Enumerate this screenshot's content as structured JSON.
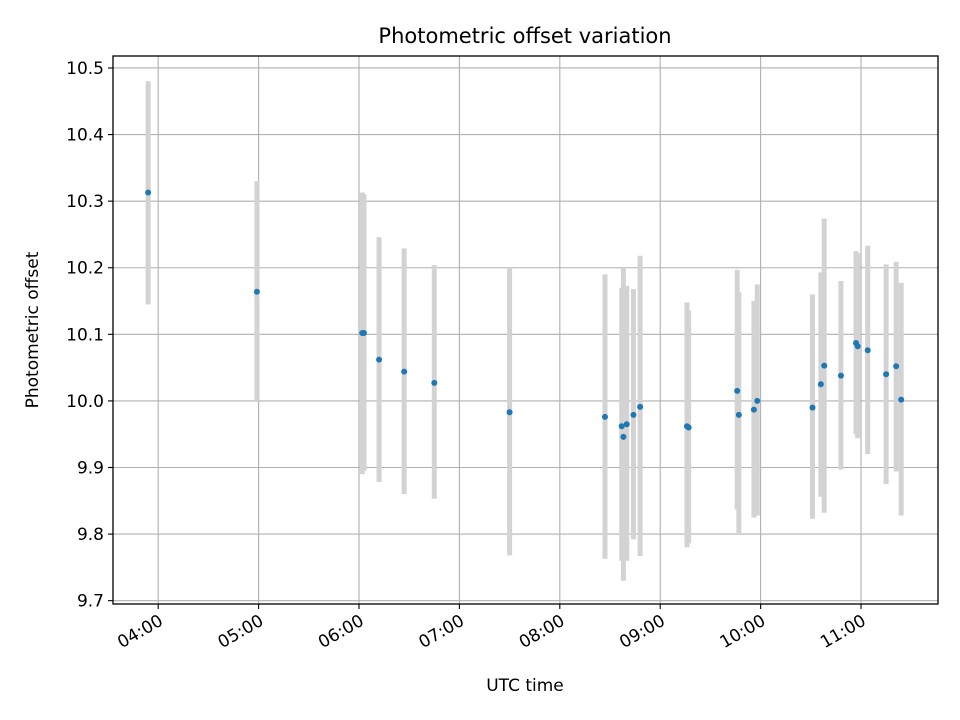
{
  "chart_data": {
    "type": "scatter",
    "title": "Photometric offset variation",
    "xlabel": "UTC time",
    "ylabel": "Photometric offset",
    "grid": true,
    "xlim": [
      "03:33",
      "11:46"
    ],
    "ylim": [
      9.695,
      10.518
    ],
    "x_ticks": [
      "04:00",
      "05:00",
      "06:00",
      "07:00",
      "08:00",
      "09:00",
      "10:00",
      "11:00"
    ],
    "y_ticks": [
      9.7,
      9.8,
      9.9,
      10.0,
      10.1,
      10.2,
      10.3,
      10.4,
      10.5
    ],
    "y_tick_labels": [
      "9.7",
      "9.8",
      "9.9",
      "10.0",
      "10.1",
      "10.2",
      "10.3",
      "10.4",
      "10.5"
    ],
    "errorbar_color": "#d3d3d3",
    "point_color": "#1f77b4",
    "points": [
      {
        "x": "03:54",
        "y": 10.313,
        "ylo": 10.145,
        "yhi": 10.48
      },
      {
        "x": "04:59",
        "y": 10.164,
        "ylo": 10.0,
        "yhi": 10.33
      },
      {
        "x": "06:02",
        "y": 10.102,
        "ylo": 9.89,
        "yhi": 10.313
      },
      {
        "x": "06:03",
        "y": 10.102,
        "ylo": 9.895,
        "yhi": 10.31
      },
      {
        "x": "06:12",
        "y": 10.062,
        "ylo": 9.878,
        "yhi": 10.246
      },
      {
        "x": "06:27",
        "y": 10.044,
        "ylo": 9.86,
        "yhi": 10.229
      },
      {
        "x": "06:45",
        "y": 10.027,
        "ylo": 9.853,
        "yhi": 10.204
      },
      {
        "x": "07:30",
        "y": 9.983,
        "ylo": 9.768,
        "yhi": 10.2
      },
      {
        "x": "08:27",
        "y": 9.976,
        "ylo": 9.763,
        "yhi": 10.19
      },
      {
        "x": "08:37",
        "y": 9.962,
        "ylo": 9.76,
        "yhi": 10.17
      },
      {
        "x": "08:38",
        "y": 9.946,
        "ylo": 9.73,
        "yhi": 10.2
      },
      {
        "x": "08:40",
        "y": 9.965,
        "ylo": 9.76,
        "yhi": 10.173
      },
      {
        "x": "08:44",
        "y": 9.979,
        "ylo": 9.792,
        "yhi": 10.168
      },
      {
        "x": "08:48",
        "y": 9.991,
        "ylo": 9.767,
        "yhi": 10.218
      },
      {
        "x": "09:16",
        "y": 9.962,
        "ylo": 9.78,
        "yhi": 10.148
      },
      {
        "x": "09:17",
        "y": 9.96,
        "ylo": 9.786,
        "yhi": 10.136
      },
      {
        "x": "09:46",
        "y": 10.015,
        "ylo": 9.837,
        "yhi": 10.197
      },
      {
        "x": "09:47",
        "y": 9.979,
        "ylo": 9.8,
        "yhi": 10.163
      },
      {
        "x": "09:56",
        "y": 9.987,
        "ylo": 9.825,
        "yhi": 10.15
      },
      {
        "x": "09:58",
        "y": 10.0,
        "ylo": 9.828,
        "yhi": 10.175
      },
      {
        "x": "10:31",
        "y": 9.99,
        "ylo": 9.823,
        "yhi": 10.16
      },
      {
        "x": "10:36",
        "y": 10.025,
        "ylo": 9.856,
        "yhi": 10.193
      },
      {
        "x": "10:38",
        "y": 10.053,
        "ylo": 9.832,
        "yhi": 10.274
      },
      {
        "x": "10:48",
        "y": 10.038,
        "ylo": 9.897,
        "yhi": 10.18
      },
      {
        "x": "10:57",
        "y": 10.087,
        "ylo": 9.95,
        "yhi": 10.225
      },
      {
        "x": "10:58",
        "y": 10.082,
        "ylo": 9.944,
        "yhi": 10.222
      },
      {
        "x": "11:04",
        "y": 10.076,
        "ylo": 9.92,
        "yhi": 10.233
      },
      {
        "x": "11:15",
        "y": 10.04,
        "ylo": 9.875,
        "yhi": 10.205
      },
      {
        "x": "11:21",
        "y": 10.052,
        "ylo": 9.894,
        "yhi": 10.209
      },
      {
        "x": "11:24",
        "y": 10.002,
        "ylo": 9.828,
        "yhi": 10.177
      }
    ]
  }
}
